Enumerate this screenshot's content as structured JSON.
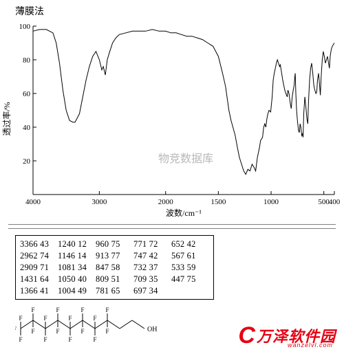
{
  "title": "薄膜法",
  "chart": {
    "type": "line",
    "watermark": "物竞数据库",
    "xlabel": "波数/cm⁻¹",
    "ylabel": "透过率/%",
    "xlim": [
      4000,
      400
    ],
    "ylim": [
      0,
      100
    ],
    "xticks": [
      4000,
      3000,
      2000,
      1500,
      1000,
      500,
      400
    ],
    "yticks": [
      20,
      40,
      60,
      80,
      100
    ],
    "background_color": "#ffffff",
    "axis_color": "#000000",
    "line_color": "#000000",
    "line_width": 1,
    "watermark_color": "#b8b8b8",
    "series": [
      [
        4000,
        97
      ],
      [
        3900,
        98
      ],
      [
        3800,
        98
      ],
      [
        3700,
        96
      ],
      [
        3650,
        90
      ],
      [
        3600,
        78
      ],
      [
        3550,
        62
      ],
      [
        3500,
        50
      ],
      [
        3450,
        44
      ],
      [
        3400,
        43
      ],
      [
        3366,
        43
      ],
      [
        3300,
        48
      ],
      [
        3250,
        58
      ],
      [
        3200,
        68
      ],
      [
        3150,
        76
      ],
      [
        3100,
        82
      ],
      [
        3050,
        85
      ],
      [
        3000,
        80
      ],
      [
        2962,
        74
      ],
      [
        2940,
        76
      ],
      [
        2909,
        71
      ],
      [
        2880,
        80
      ],
      [
        2850,
        84
      ],
      [
        2800,
        90
      ],
      [
        2750,
        93
      ],
      [
        2700,
        95
      ],
      [
        2600,
        96
      ],
      [
        2500,
        97
      ],
      [
        2400,
        97
      ],
      [
        2300,
        97
      ],
      [
        2200,
        98
      ],
      [
        2100,
        97
      ],
      [
        2000,
        97
      ],
      [
        1950,
        96
      ],
      [
        1900,
        96
      ],
      [
        1850,
        95
      ],
      [
        1800,
        94
      ],
      [
        1750,
        94
      ],
      [
        1700,
        93
      ],
      [
        1650,
        92
      ],
      [
        1600,
        90
      ],
      [
        1550,
        88
      ],
      [
        1500,
        82
      ],
      [
        1460,
        72
      ],
      [
        1431,
        64
      ],
      [
        1400,
        50
      ],
      [
        1380,
        44
      ],
      [
        1366,
        41
      ],
      [
        1340,
        35
      ],
      [
        1320,
        28
      ],
      [
        1300,
        22
      ],
      [
        1280,
        18
      ],
      [
        1260,
        14
      ],
      [
        1240,
        12
      ],
      [
        1220,
        15
      ],
      [
        1200,
        14
      ],
      [
        1180,
        18
      ],
      [
        1160,
        16
      ],
      [
        1146,
        14
      ],
      [
        1130,
        22
      ],
      [
        1110,
        28
      ],
      [
        1100,
        32
      ],
      [
        1081,
        34
      ],
      [
        1070,
        40
      ],
      [
        1060,
        42
      ],
      [
        1050,
        40
      ],
      [
        1040,
        45
      ],
      [
        1030,
        48
      ],
      [
        1020,
        50
      ],
      [
        1004,
        49
      ],
      [
        990,
        58
      ],
      [
        980,
        68
      ],
      [
        970,
        72
      ],
      [
        960,
        75
      ],
      [
        950,
        78
      ],
      [
        940,
        80
      ],
      [
        930,
        78
      ],
      [
        920,
        76
      ],
      [
        913,
        77
      ],
      [
        900,
        72
      ],
      [
        890,
        68
      ],
      [
        880,
        65
      ],
      [
        870,
        62
      ],
      [
        860,
        60
      ],
      [
        847,
        58
      ],
      [
        840,
        62
      ],
      [
        830,
        60
      ],
      [
        820,
        55
      ],
      [
        809,
        51
      ],
      [
        800,
        58
      ],
      [
        790,
        62
      ],
      [
        781,
        65
      ],
      [
        775,
        70
      ],
      [
        771,
        72
      ],
      [
        765,
        60
      ],
      [
        758,
        50
      ],
      [
        750,
        44
      ],
      [
        747,
        42
      ],
      [
        740,
        38
      ],
      [
        735,
        37
      ],
      [
        732,
        37
      ],
      [
        725,
        42
      ],
      [
        718,
        40
      ],
      [
        709,
        35
      ],
      [
        702,
        36
      ],
      [
        697,
        34
      ],
      [
        690,
        48
      ],
      [
        680,
        58
      ],
      [
        670,
        52
      ],
      [
        660,
        45
      ],
      [
        652,
        42
      ],
      [
        645,
        55
      ],
      [
        635,
        68
      ],
      [
        625,
        75
      ],
      [
        615,
        78
      ],
      [
        605,
        72
      ],
      [
        595,
        65
      ],
      [
        585,
        62
      ],
      [
        575,
        60
      ],
      [
        567,
        61
      ],
      [
        560,
        68
      ],
      [
        550,
        72
      ],
      [
        540,
        65
      ],
      [
        533,
        59
      ],
      [
        525,
        70
      ],
      [
        515,
        80
      ],
      [
        505,
        85
      ],
      [
        495,
        82
      ],
      [
        485,
        78
      ],
      [
        475,
        80
      ],
      [
        465,
        82
      ],
      [
        455,
        78
      ],
      [
        447,
        75
      ],
      [
        440,
        82
      ],
      [
        430,
        86
      ],
      [
        420,
        88
      ],
      [
        410,
        89
      ],
      [
        400,
        90
      ]
    ]
  },
  "peak_table": {
    "columns": 6,
    "rows": [
      [
        "3366 43",
        "1240 12",
        "960 75",
        "771 72",
        "652 42",
        ""
      ],
      [
        "2962 74",
        "1146 14",
        "913 77",
        "747 42",
        "567 61",
        ""
      ],
      [
        "2909 71",
        "1081 34",
        "847 58",
        "732 37",
        "533 59",
        ""
      ],
      [
        "1431 64",
        "1050 40",
        "809 51",
        "709 35",
        "447 75",
        ""
      ],
      [
        "1366 41",
        "1004 49",
        "781 65",
        "697 34",
        "",
        ""
      ]
    ]
  },
  "structure": {
    "label_F": "F",
    "label_OH": "OH",
    "bond_color": "#000000"
  },
  "logo": {
    "big_letter": "C",
    "text": "万泽软件园",
    "sub": "wanzelvl.com",
    "color": "#e60012"
  },
  "divider_color": "#808080"
}
